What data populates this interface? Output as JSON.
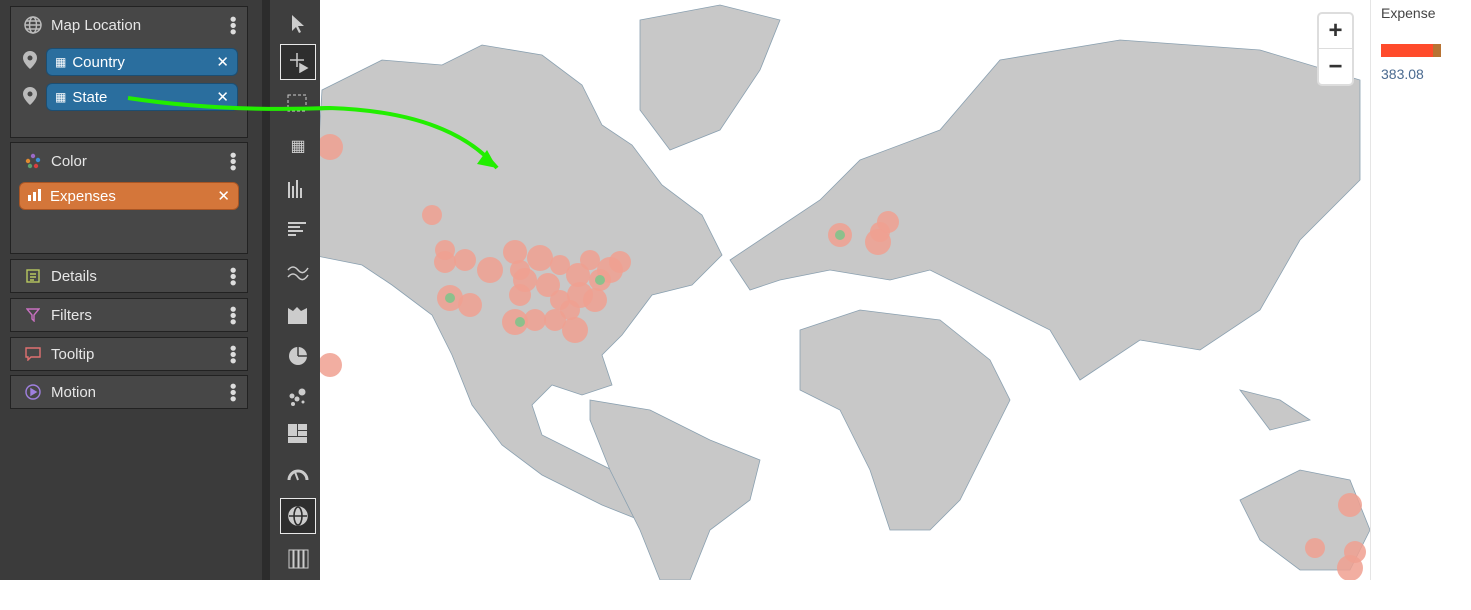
{
  "panels": {
    "map_location": {
      "title": "Map Location",
      "fields": [
        {
          "label": "Country",
          "remove": "✕"
        },
        {
          "label": "State",
          "remove": "✕"
        }
      ]
    },
    "color": {
      "title": "Color",
      "fields": [
        {
          "label": "Expenses",
          "remove": "✕"
        }
      ]
    },
    "details": {
      "title": "Details"
    },
    "filters": {
      "title": "Filters"
    },
    "tooltip": {
      "title": "Tooltip"
    },
    "motion": {
      "title": "Motion"
    }
  },
  "toolbar": {
    "selected": "map",
    "items": [
      "select",
      "add-measure",
      "marquee-select",
      "table",
      "bar-chart",
      "horizontal-bar",
      "line",
      "area",
      "pie",
      "scatter",
      "treemap",
      "gauge",
      "map",
      "more"
    ]
  },
  "map": {
    "zoom_in": "+",
    "zoom_out": "−",
    "land_color": "#c8c8c8",
    "bubble_color": "#f0a090",
    "bubble_center_color": "#8cc08c"
  },
  "legend": {
    "title": "Expense",
    "value": "383.08",
    "colors": [
      "#ff4b2b",
      "#b87333"
    ]
  },
  "annotation": {
    "arrow_color": "#22ee00"
  }
}
